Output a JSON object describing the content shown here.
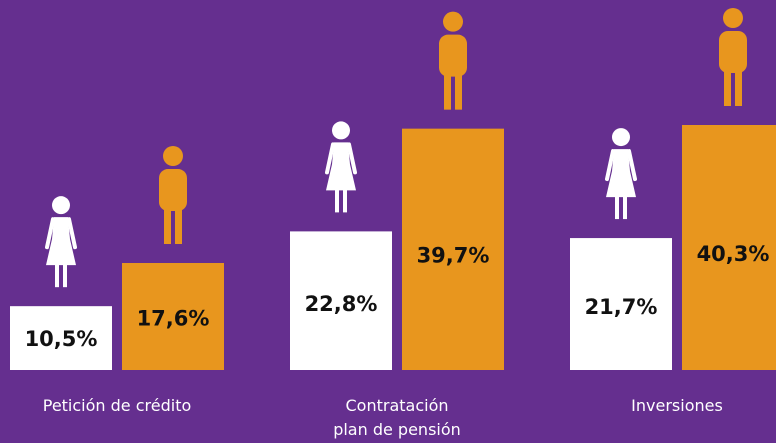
{
  "chart_data": {
    "type": "bar",
    "categories": [
      "Petición de crédito",
      "Contratación\nplan de pensión",
      "Inversiones"
    ],
    "series": [
      {
        "color": "#ffffff",
        "values": [
          10.5,
          22.8,
          21.7
        ],
        "value_labels": [
          "10,5%",
          "22,8%",
          "21,7%"
        ]
      },
      {
        "color": "#e8961e",
        "values": [
          17.6,
          39.7,
          40.3
        ],
        "value_labels": [
          "17,6%",
          "39,7%",
          "40,3%"
        ]
      }
    ]
  }
}
